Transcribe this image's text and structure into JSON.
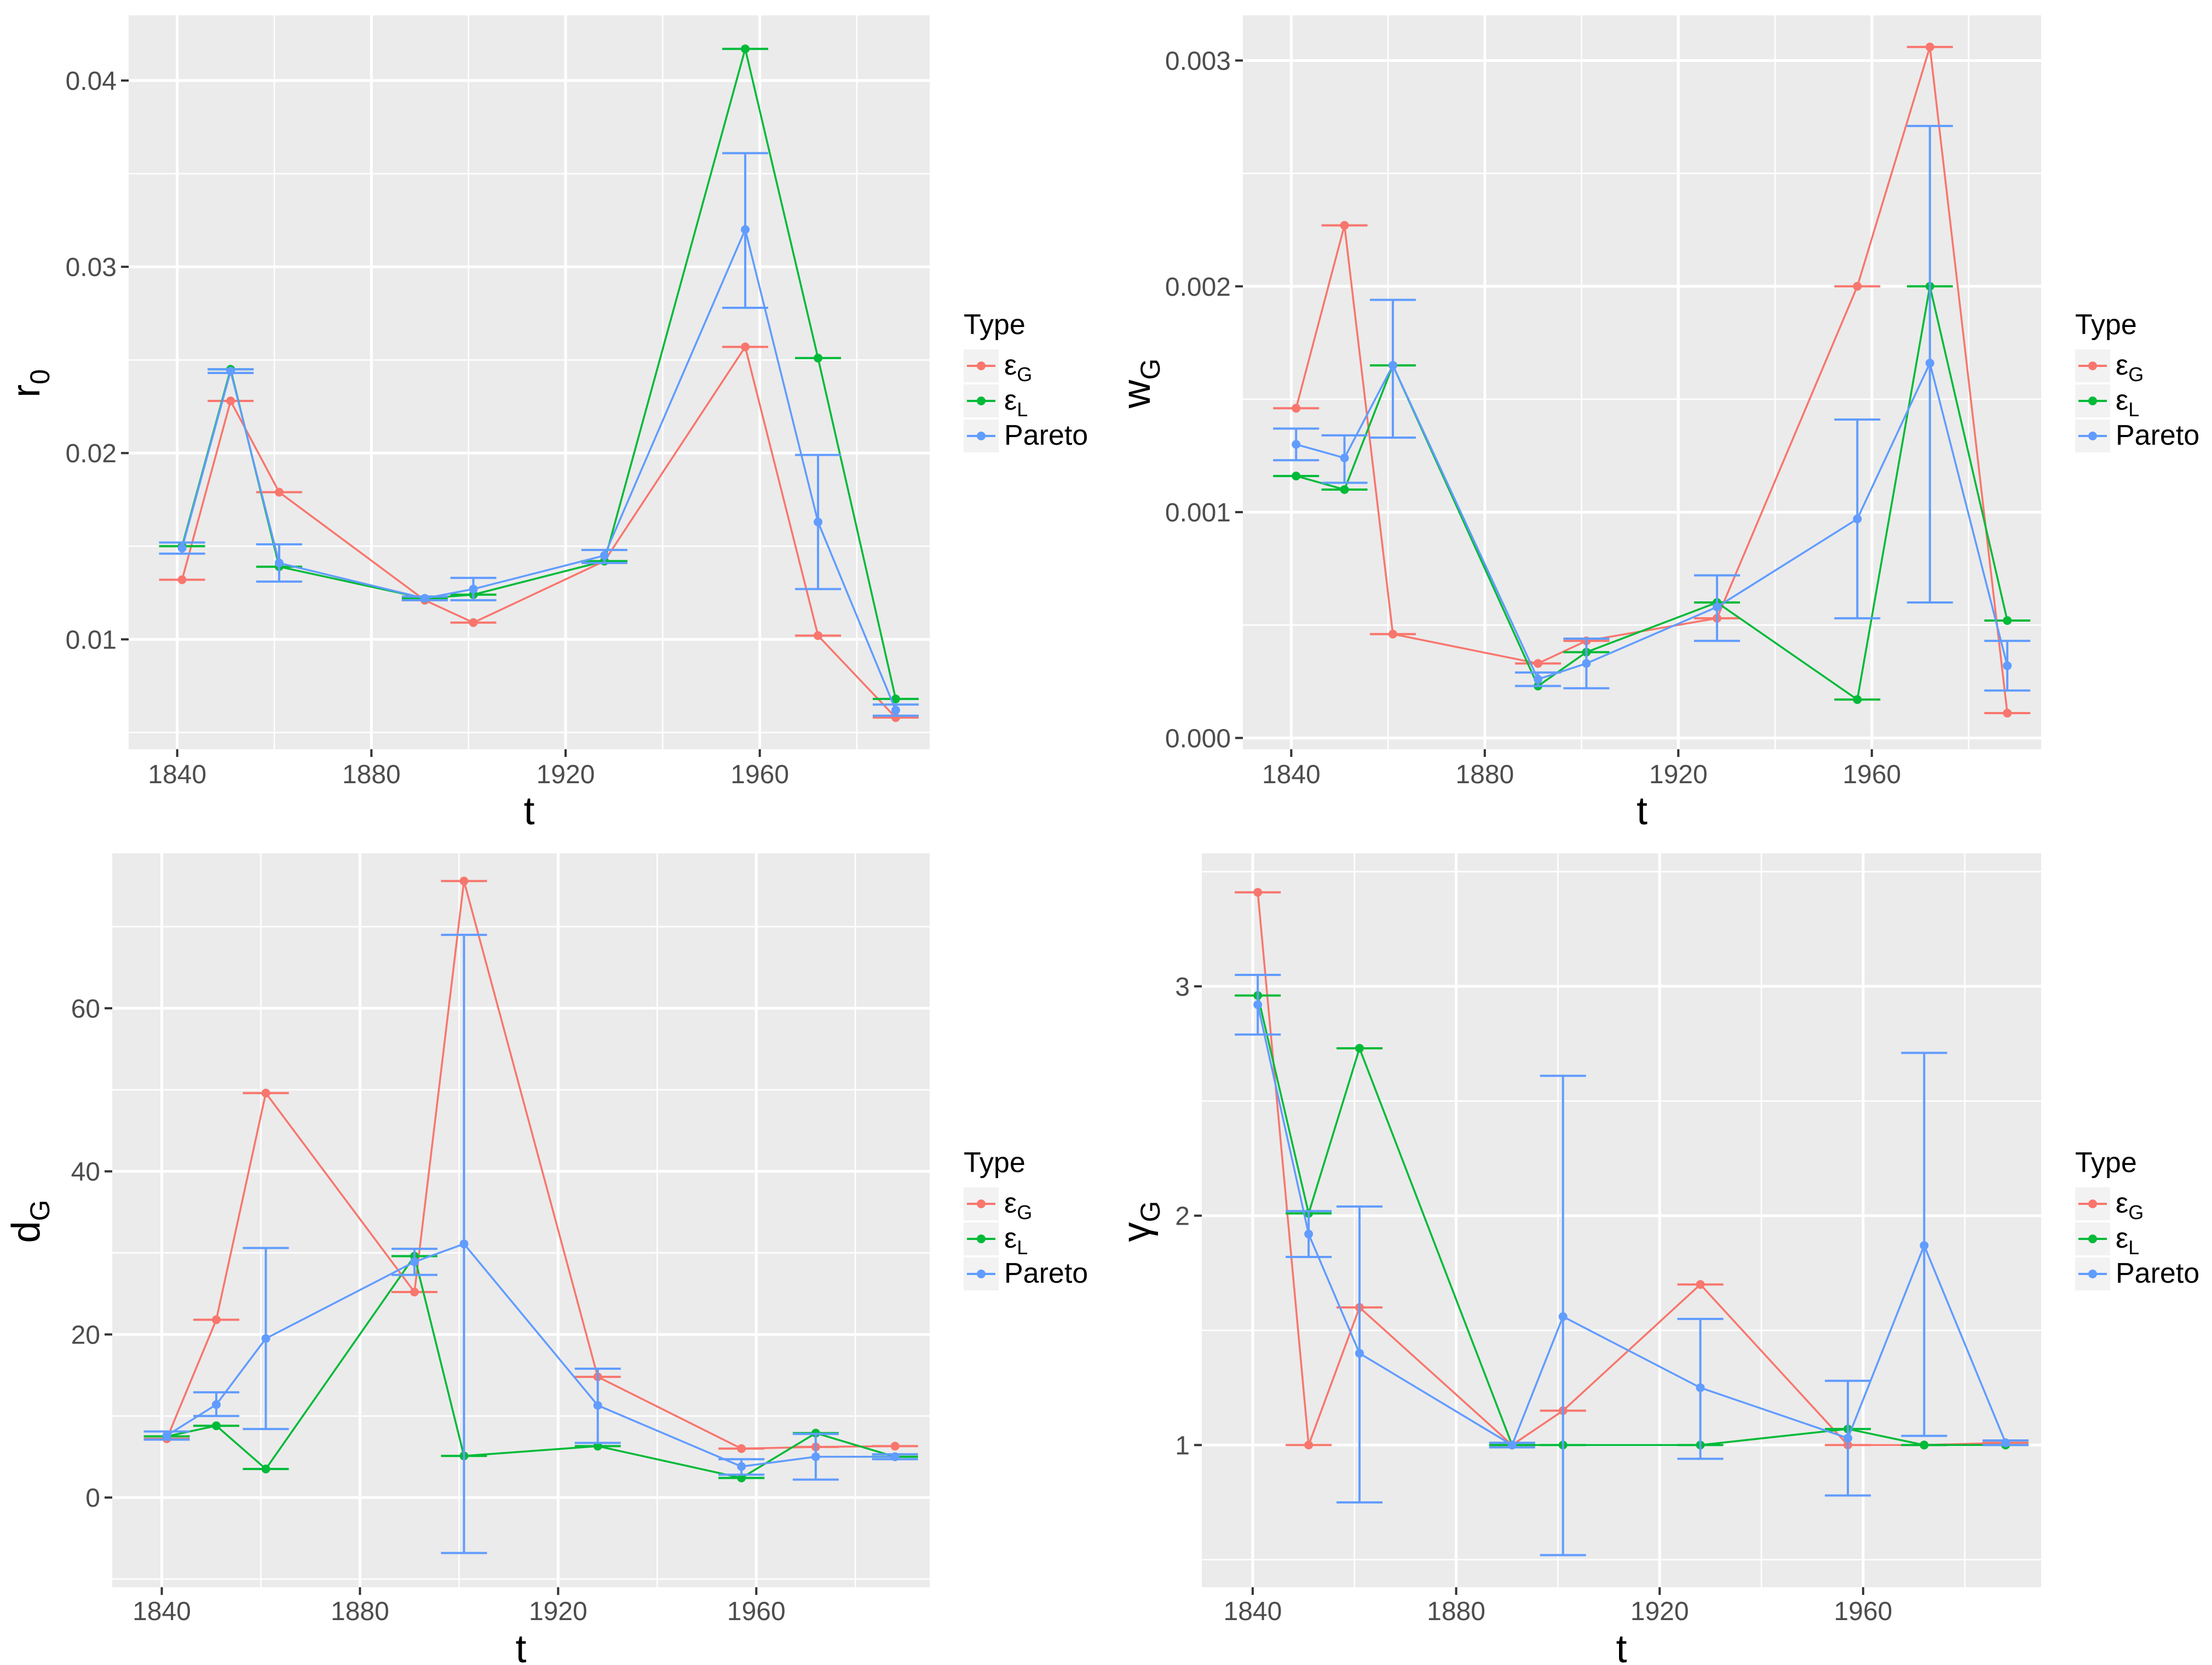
{
  "colors": {
    "panel_bg": "#EBEBEB",
    "grid": "#FFFFFF",
    "tick": "#333333",
    "series": {
      "εG": "#F8766D",
      "εL": "#00BA38",
      "Pareto": "#619CFF"
    }
  },
  "legend": {
    "title": "Type",
    "position": "right"
  },
  "chart_data": [
    {
      "type": "line",
      "id": "r0",
      "ylabel": {
        "main": "r",
        "sub": "0"
      },
      "xlabel": "t",
      "xlim": [
        1830,
        1995
      ],
      "ylim": [
        0.0041,
        0.0435
      ],
      "xticks": [
        1840,
        1880,
        1920,
        1960
      ],
      "yticks": [
        0.01,
        0.02,
        0.03,
        0.04
      ],
      "ytick_labels": [
        "0.01",
        "0.02",
        "0.03",
        "0.04"
      ],
      "series": [
        {
          "name": "εG",
          "x": [
            1841,
            1851,
            1861,
            1891,
            1901,
            1928,
            1957,
            1972,
            1988
          ],
          "y": [
            0.0132,
            0.0228,
            0.0179,
            0.0121,
            0.0109,
            0.0142,
            0.0257,
            0.0102,
            0.0058
          ]
        },
        {
          "name": "εL",
          "x": [
            1841,
            1851,
            1861,
            1891,
            1901,
            1928,
            1957,
            1972,
            1988
          ],
          "y": [
            0.015,
            0.0245,
            0.0139,
            0.0122,
            0.0124,
            0.0142,
            0.0417,
            0.0251,
            0.0068
          ]
        },
        {
          "name": "Pareto",
          "x": [
            1841,
            1851,
            1861,
            1891,
            1901,
            1928,
            1957,
            1972,
            1988
          ],
          "y": [
            0.0149,
            0.0244,
            0.0141,
            0.0122,
            0.0127,
            0.0145,
            0.032,
            0.0163,
            0.0062
          ],
          "lower": [
            0.0146,
            0.0243,
            0.0131,
            0.0121,
            0.0121,
            0.0141,
            0.0278,
            0.0127,
            0.0059
          ],
          "upper": [
            0.0152,
            0.0245,
            0.0151,
            0.0123,
            0.0133,
            0.0148,
            0.0361,
            0.0199,
            0.0065
          ]
        }
      ]
    },
    {
      "type": "line",
      "id": "wG",
      "ylabel": {
        "main": "w",
        "sub": "G"
      },
      "xlabel": "t",
      "xlim": [
        1830,
        1995
      ],
      "ylim": [
        -5e-05,
        0.0032
      ],
      "xticks": [
        1840,
        1880,
        1920,
        1960
      ],
      "yticks": [
        0.0,
        0.001,
        0.002,
        0.003
      ],
      "ytick_labels": [
        "0.000",
        "0.001",
        "0.002",
        "0.003"
      ],
      "series": [
        {
          "name": "εG",
          "x": [
            1841,
            1851,
            1861,
            1891,
            1901,
            1928,
            1957,
            1972,
            1988
          ],
          "y": [
            0.00146,
            0.00227,
            0.00046,
            0.00033,
            0.00043,
            0.00053,
            0.002,
            0.00306,
            0.00011
          ]
        },
        {
          "name": "εL",
          "x": [
            1841,
            1851,
            1861,
            1891,
            1901,
            1928,
            1957,
            1972,
            1988
          ],
          "y": [
            0.00116,
            0.0011,
            0.00165,
            0.00023,
            0.00038,
            0.0006,
            0.00017,
            0.002,
            0.00052
          ]
        },
        {
          "name": "Pareto",
          "x": [
            1841,
            1851,
            1861,
            1891,
            1901,
            1928,
            1957,
            1972,
            1988
          ],
          "y": [
            0.0013,
            0.00124,
            0.00165,
            0.00026,
            0.00033,
            0.00058,
            0.00097,
            0.00166,
            0.00032
          ],
          "lower": [
            0.00123,
            0.00113,
            0.00133,
            0.00023,
            0.00022,
            0.00043,
            0.00053,
            0.0006,
            0.00021
          ],
          "upper": [
            0.00137,
            0.00134,
            0.00194,
            0.00029,
            0.00044,
            0.00072,
            0.00141,
            0.00271,
            0.00043
          ]
        }
      ]
    },
    {
      "type": "line",
      "id": "dG",
      "ylabel": {
        "main": "d",
        "sub": "G"
      },
      "xlabel": "t",
      "xlim": [
        1830,
        1995
      ],
      "ylim": [
        -11,
        79
      ],
      "xticks": [
        1840,
        1880,
        1920,
        1960
      ],
      "yticks": [
        0,
        20,
        40,
        60
      ],
      "ytick_labels": [
        "0",
        "20",
        "40",
        "60"
      ],
      "series": [
        {
          "name": "εG",
          "x": [
            1841,
            1851,
            1861,
            1891,
            1901,
            1928,
            1957,
            1972,
            1988
          ],
          "y": [
            7.2,
            21.8,
            49.6,
            25.2,
            75.6,
            14.8,
            6.0,
            6.2,
            6.3
          ]
        },
        {
          "name": "εL",
          "x": [
            1841,
            1851,
            1861,
            1891,
            1901,
            1928,
            1957,
            1972,
            1988
          ],
          "y": [
            7.5,
            8.8,
            3.5,
            29.6,
            5.1,
            6.3,
            2.4,
            7.9,
            5.0
          ]
        },
        {
          "name": "Pareto",
          "x": [
            1841,
            1851,
            1861,
            1891,
            1901,
            1928,
            1957,
            1972,
            1988
          ],
          "y": [
            7.6,
            11.4,
            19.5,
            28.9,
            31.1,
            11.3,
            3.8,
            5.0,
            5.0
          ],
          "lower": [
            7.1,
            10.0,
            8.4,
            27.3,
            -6.8,
            6.7,
            2.8,
            2.2,
            4.7
          ],
          "upper": [
            8.1,
            12.9,
            30.6,
            30.5,
            69.0,
            15.8,
            4.7,
            7.8,
            5.3
          ]
        }
      ]
    },
    {
      "type": "line",
      "id": "gammaG",
      "ylabel": {
        "main": "γ",
        "sub": "G"
      },
      "xlabel": "t",
      "xlim": [
        1830,
        1995
      ],
      "ylim": [
        0.38,
        3.58
      ],
      "xticks": [
        1840,
        1880,
        1920,
        1960
      ],
      "yticks": [
        1,
        2,
        3
      ],
      "ytick_labels": [
        "1",
        "2",
        "3"
      ],
      "series": [
        {
          "name": "εG",
          "x": [
            1841,
            1851,
            1861,
            1891,
            1901,
            1928,
            1957,
            1972,
            1988
          ],
          "y": [
            3.41,
            1.0,
            1.6,
            1.0,
            1.15,
            1.7,
            1.0,
            1.0,
            1.01
          ]
        },
        {
          "name": "εL",
          "x": [
            1841,
            1851,
            1861,
            1891,
            1901,
            1928,
            1957,
            1972,
            1988
          ],
          "y": [
            2.96,
            2.01,
            2.73,
            1.0,
            1.0,
            1.0,
            1.07,
            1.0,
            1.0
          ]
        },
        {
          "name": "Pareto",
          "x": [
            1841,
            1851,
            1861,
            1891,
            1901,
            1928,
            1957,
            1972,
            1988
          ],
          "y": [
            2.92,
            1.92,
            1.4,
            1.0,
            1.56,
            1.25,
            1.03,
            1.87,
            1.01
          ],
          "lower": [
            2.79,
            1.82,
            0.75,
            0.99,
            0.52,
            0.94,
            0.78,
            1.04,
            1.0
          ],
          "upper": [
            3.05,
            2.02,
            2.04,
            1.01,
            2.61,
            1.55,
            1.28,
            2.71,
            1.02
          ]
        }
      ]
    }
  ]
}
